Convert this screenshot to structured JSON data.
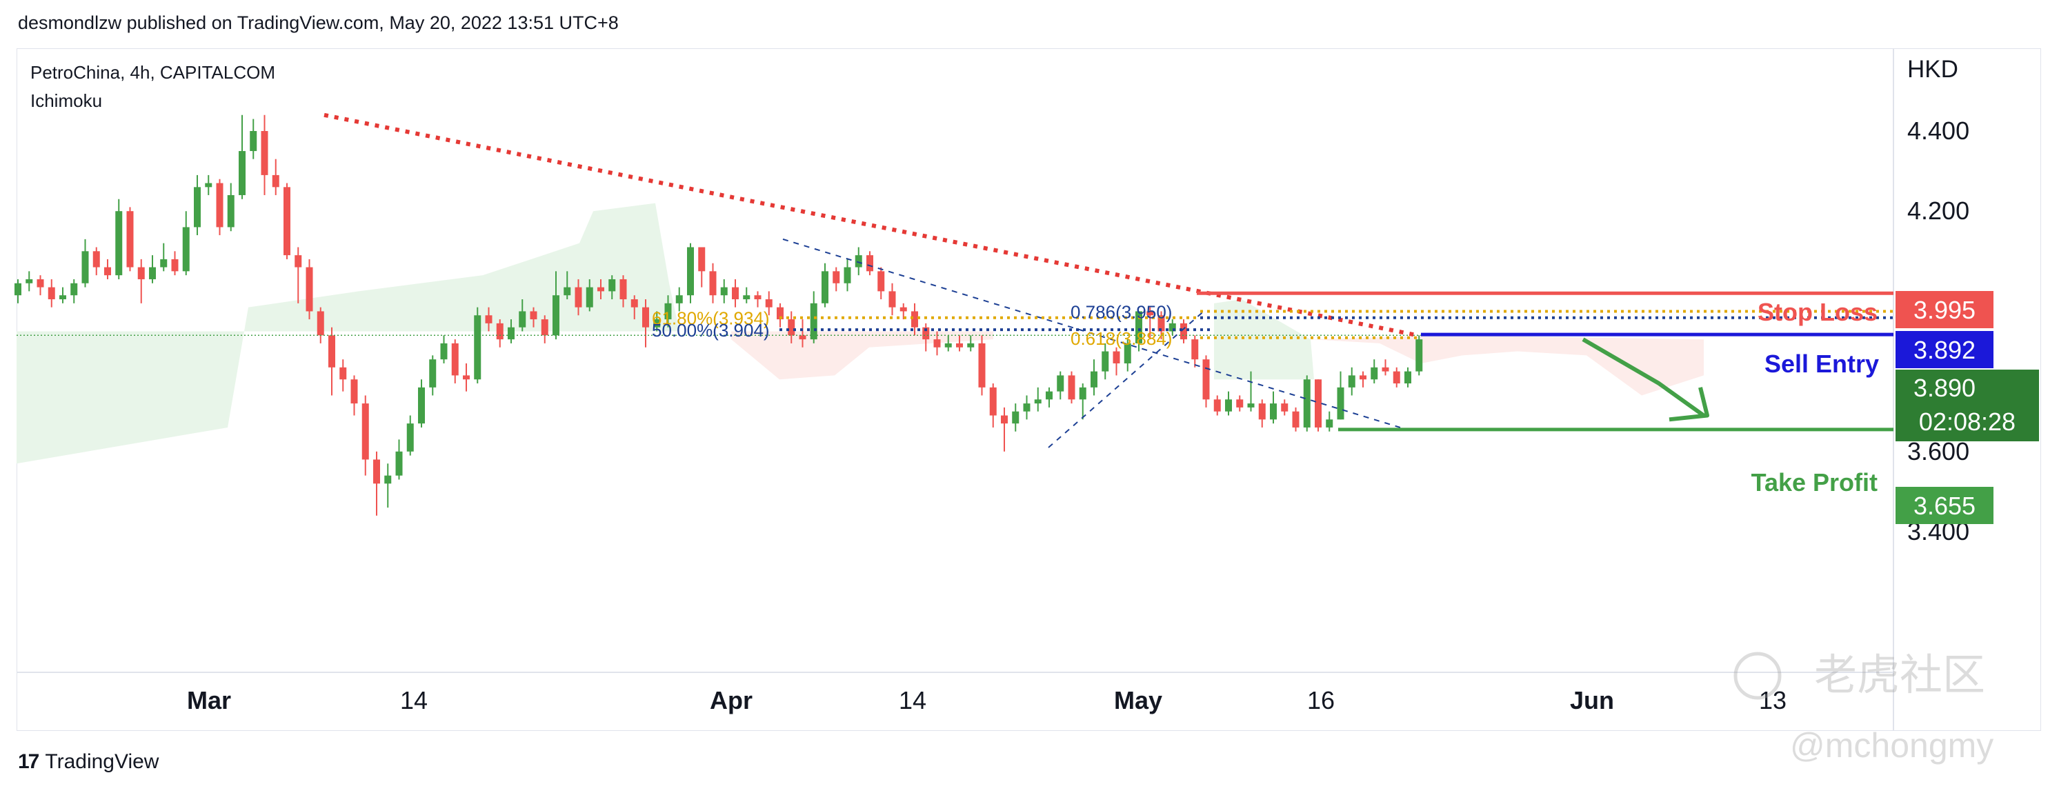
{
  "header": {
    "published": "desmondlzw published on TradingView.com, May 20, 2022 13:51 UTC+8"
  },
  "legend": {
    "symbol": "PetroChina, 4h, CAPITALCOM",
    "indicator": "Ichimoku"
  },
  "footer": {
    "brand_logo": "17",
    "brand": "TradingView"
  },
  "watermark": {
    "community": "老虎社区",
    "handle": "@mchongmy"
  },
  "colors": {
    "up": "#43a047",
    "down": "#ef5350",
    "sell": "#1b18d9",
    "fib_gold": "#e0a800",
    "fib_blue": "#1c3f94",
    "trend": "#e53935",
    "cloud_green": "#e8f5e9",
    "cloud_red": "#fdecea"
  },
  "chart_data": {
    "type": "candlestick",
    "currency": "HKD",
    "yticks": [
      "4.400",
      "4.200",
      "3.600",
      "3.400"
    ],
    "xticks": [
      "Mar",
      "14",
      "Apr",
      "14",
      "May",
      "16",
      "Jun",
      "13"
    ],
    "ylim": [
      3.34,
      4.46
    ],
    "levels": {
      "stop_loss": {
        "label": "Stop Loss",
        "price": "3.995"
      },
      "sell_entry": {
        "label": "Sell Entry",
        "price": "3.892"
      },
      "take_profit": {
        "label": "Take Profit",
        "price": "3.655"
      },
      "last": {
        "price": "3.890",
        "countdown": "02:08:28"
      }
    },
    "fib": [
      {
        "label": "61.80%(3.934)",
        "price": 3.934
      },
      {
        "label": "50.00%(3.904)",
        "price": 3.904
      },
      {
        "label": "0.786(3.950)",
        "price": 3.95
      },
      {
        "label": "0.618(3.884)",
        "price": 3.884
      }
    ],
    "candles": [
      [
        0,
        3.99,
        4.02,
        4.03,
        3.97
      ],
      [
        1,
        4.02,
        4.03,
        4.05,
        4.0
      ],
      [
        2,
        4.03,
        4.01,
        4.04,
        3.99
      ],
      [
        3,
        4.01,
        3.98,
        4.03,
        3.96
      ],
      [
        4,
        3.98,
        3.99,
        4.01,
        3.97
      ],
      [
        5,
        3.99,
        4.02,
        4.03,
        3.97
      ],
      [
        6,
        4.02,
        4.1,
        4.13,
        4.01
      ],
      [
        7,
        4.1,
        4.06,
        4.11,
        4.04
      ],
      [
        8,
        4.06,
        4.04,
        4.08,
        4.03
      ],
      [
        9,
        4.04,
        4.2,
        4.23,
        4.03
      ],
      [
        10,
        4.2,
        4.06,
        4.21,
        4.05
      ],
      [
        11,
        4.06,
        4.03,
        4.08,
        3.97
      ],
      [
        12,
        4.03,
        4.06,
        4.09,
        4.02
      ],
      [
        13,
        4.06,
        4.08,
        4.12,
        4.05
      ],
      [
        14,
        4.08,
        4.05,
        4.1,
        4.04
      ],
      [
        15,
        4.05,
        4.16,
        4.2,
        4.04
      ],
      [
        16,
        4.16,
        4.26,
        4.29,
        4.14
      ],
      [
        17,
        4.26,
        4.27,
        4.29,
        4.24
      ],
      [
        18,
        4.27,
        4.16,
        4.28,
        4.14
      ],
      [
        19,
        4.16,
        4.24,
        4.27,
        4.15
      ],
      [
        20,
        4.24,
        4.35,
        4.44,
        4.23
      ],
      [
        21,
        4.35,
        4.4,
        4.43,
        4.33
      ],
      [
        22,
        4.4,
        4.29,
        4.44,
        4.24
      ],
      [
        23,
        4.29,
        4.26,
        4.33,
        4.24
      ],
      [
        24,
        4.26,
        4.09,
        4.27,
        4.08
      ],
      [
        25,
        4.09,
        4.06,
        4.11,
        3.97
      ],
      [
        26,
        4.06,
        3.95,
        4.08,
        3.93
      ],
      [
        27,
        3.95,
        3.89,
        3.96,
        3.87
      ],
      [
        28,
        3.89,
        3.81,
        3.91,
        3.74
      ],
      [
        29,
        3.81,
        3.78,
        3.83,
        3.75
      ],
      [
        30,
        3.78,
        3.72,
        3.79,
        3.69
      ],
      [
        31,
        3.72,
        3.58,
        3.74,
        3.54
      ],
      [
        32,
        3.58,
        3.52,
        3.6,
        3.44
      ],
      [
        33,
        3.52,
        3.54,
        3.57,
        3.46
      ],
      [
        34,
        3.54,
        3.6,
        3.63,
        3.53
      ],
      [
        35,
        3.6,
        3.67,
        3.69,
        3.59
      ],
      [
        36,
        3.67,
        3.76,
        3.78,
        3.66
      ],
      [
        37,
        3.76,
        3.83,
        3.84,
        3.74
      ],
      [
        38,
        3.83,
        3.87,
        3.89,
        3.82
      ],
      [
        39,
        3.87,
        3.79,
        3.88,
        3.77
      ],
      [
        40,
        3.79,
        3.78,
        3.82,
        3.75
      ],
      [
        41,
        3.78,
        3.94,
        3.96,
        3.77
      ],
      [
        42,
        3.94,
        3.92,
        3.96,
        3.9
      ],
      [
        43,
        3.92,
        3.88,
        3.93,
        3.86
      ],
      [
        44,
        3.88,
        3.91,
        3.93,
        3.87
      ],
      [
        45,
        3.91,
        3.95,
        3.98,
        3.9
      ],
      [
        46,
        3.95,
        3.93,
        3.96,
        3.91
      ],
      [
        47,
        3.93,
        3.89,
        3.94,
        3.87
      ],
      [
        48,
        3.89,
        3.99,
        4.05,
        3.88
      ],
      [
        49,
        3.99,
        4.01,
        4.05,
        3.98
      ],
      [
        50,
        4.01,
        3.96,
        4.03,
        3.94
      ],
      [
        51,
        3.96,
        4.01,
        4.03,
        3.95
      ],
      [
        52,
        4.01,
        4.0,
        4.03,
        3.98
      ],
      [
        53,
        4.0,
        4.03,
        4.04,
        3.98
      ],
      [
        54,
        4.03,
        3.98,
        4.04,
        3.96
      ],
      [
        55,
        3.98,
        3.96,
        3.99,
        3.93
      ],
      [
        56,
        3.96,
        3.91,
        3.98,
        3.86
      ],
      [
        57,
        3.91,
        3.93,
        3.95,
        3.9
      ],
      [
        58,
        3.93,
        3.97,
        3.99,
        3.91
      ],
      [
        59,
        3.97,
        3.99,
        4.01,
        3.95
      ],
      [
        60,
        3.99,
        4.11,
        4.12,
        3.97
      ],
      [
        61,
        4.11,
        4.05,
        4.11,
        4.01
      ],
      [
        62,
        4.05,
        3.99,
        4.07,
        3.97
      ],
      [
        63,
        3.99,
        4.01,
        4.03,
        3.97
      ],
      [
        64,
        4.01,
        3.98,
        4.03,
        3.96
      ],
      [
        65,
        3.98,
        3.99,
        4.01,
        3.97
      ],
      [
        66,
        3.99,
        3.98,
        4.0,
        3.96
      ],
      [
        67,
        3.98,
        3.96,
        4.0,
        3.94
      ],
      [
        68,
        3.96,
        3.93,
        3.97,
        3.91
      ],
      [
        69,
        3.93,
        3.89,
        3.95,
        3.87
      ],
      [
        70,
        3.89,
        3.88,
        3.93,
        3.86
      ],
      [
        71,
        3.88,
        3.97,
        4.0,
        3.87
      ],
      [
        72,
        3.97,
        4.05,
        4.07,
        3.96
      ],
      [
        73,
        4.05,
        4.02,
        4.06,
        4.0
      ],
      [
        74,
        4.02,
        4.06,
        4.08,
        4.0
      ],
      [
        75,
        4.06,
        4.09,
        4.11,
        4.04
      ],
      [
        76,
        4.09,
        4.05,
        4.1,
        4.04
      ],
      [
        77,
        4.05,
        4.0,
        4.06,
        3.98
      ],
      [
        78,
        4.0,
        3.96,
        4.02,
        3.94
      ],
      [
        79,
        3.96,
        3.95,
        3.97,
        3.93
      ],
      [
        80,
        3.95,
        3.91,
        3.97,
        3.89
      ],
      [
        81,
        3.91,
        3.88,
        3.92,
        3.85
      ],
      [
        82,
        3.88,
        3.86,
        3.9,
        3.84
      ],
      [
        83,
        3.86,
        3.87,
        3.89,
        3.85
      ],
      [
        84,
        3.87,
        3.86,
        3.89,
        3.85
      ],
      [
        85,
        3.86,
        3.87,
        3.89,
        3.85
      ],
      [
        86,
        3.87,
        3.76,
        3.89,
        3.74
      ],
      [
        87,
        3.76,
        3.69,
        3.77,
        3.66
      ],
      [
        88,
        3.69,
        3.67,
        3.71,
        3.6
      ],
      [
        89,
        3.67,
        3.7,
        3.72,
        3.65
      ],
      [
        90,
        3.7,
        3.72,
        3.74,
        3.68
      ],
      [
        91,
        3.72,
        3.73,
        3.76,
        3.7
      ],
      [
        92,
        3.73,
        3.75,
        3.76,
        3.71
      ],
      [
        93,
        3.75,
        3.79,
        3.8,
        3.73
      ],
      [
        94,
        3.79,
        3.73,
        3.8,
        3.72
      ],
      [
        95,
        3.73,
        3.76,
        3.77,
        3.68
      ],
      [
        96,
        3.76,
        3.8,
        3.83,
        3.74
      ],
      [
        97,
        3.8,
        3.85,
        3.87,
        3.78
      ],
      [
        98,
        3.85,
        3.82,
        3.86,
        3.79
      ],
      [
        99,
        3.82,
        3.87,
        3.88,
        3.8
      ],
      [
        100,
        3.87,
        3.95,
        3.95,
        3.85
      ],
      [
        101,
        3.95,
        3.94,
        3.96,
        3.88
      ],
      [
        102,
        3.94,
        3.9,
        3.95,
        3.88
      ],
      [
        103,
        3.9,
        3.92,
        3.93,
        3.89
      ],
      [
        104,
        3.92,
        3.88,
        3.93,
        3.87
      ],
      [
        105,
        3.88,
        3.83,
        3.89,
        3.81
      ],
      [
        106,
        3.83,
        3.73,
        3.84,
        3.71
      ],
      [
        107,
        3.73,
        3.7,
        3.74,
        3.69
      ],
      [
        108,
        3.7,
        3.73,
        3.75,
        3.69
      ],
      [
        109,
        3.73,
        3.71,
        3.74,
        3.7
      ],
      [
        110,
        3.71,
        3.72,
        3.8,
        3.7
      ],
      [
        111,
        3.72,
        3.68,
        3.73,
        3.66
      ],
      [
        112,
        3.68,
        3.72,
        3.75,
        3.67
      ],
      [
        113,
        3.72,
        3.7,
        3.73,
        3.69
      ],
      [
        114,
        3.7,
        3.66,
        3.71,
        3.65
      ],
      [
        115,
        3.66,
        3.78,
        3.79,
        3.65
      ],
      [
        116,
        3.78,
        3.66,
        3.78,
        3.65
      ],
      [
        117,
        3.66,
        3.68,
        3.7,
        3.65
      ],
      [
        118,
        3.68,
        3.76,
        3.8,
        3.68
      ],
      [
        119,
        3.76,
        3.79,
        3.81,
        3.74
      ],
      [
        120,
        3.79,
        3.78,
        3.8,
        3.76
      ],
      [
        121,
        3.78,
        3.81,
        3.83,
        3.77
      ],
      [
        122,
        3.81,
        3.8,
        3.83,
        3.79
      ],
      [
        123,
        3.8,
        3.77,
        3.81,
        3.76
      ],
      [
        124,
        3.77,
        3.8,
        3.81,
        3.76
      ],
      [
        125,
        3.8,
        3.88,
        3.89,
        3.79
      ]
    ]
  }
}
